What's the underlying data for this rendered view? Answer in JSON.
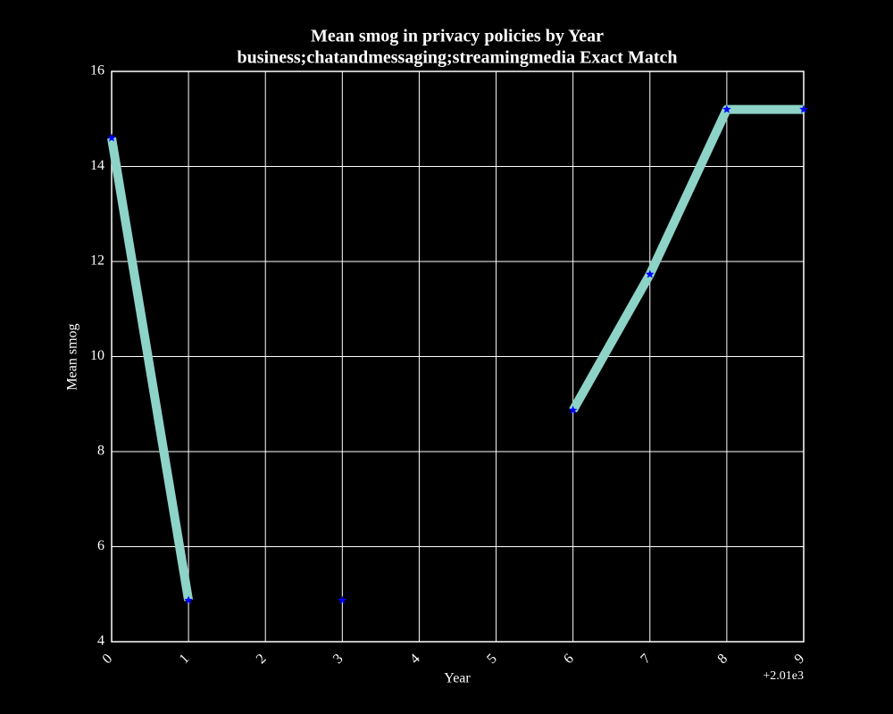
{
  "chart_data": {
    "type": "line",
    "title": "Mean smog in privacy policies by Year",
    "subtitle": "business;chatandmessaging;streamingmedia Exact Match",
    "x_label": "Year",
    "y_label": "Mean smog",
    "x_offset_label": "+2.01e3",
    "x": [
      0,
      1,
      2,
      3,
      4,
      5,
      6,
      7,
      8,
      9
    ],
    "series": [
      {
        "name": "Mean smog",
        "color": "#8dd3c7",
        "marker_color": "#0000ff",
        "values": [
          14.6,
          4.87,
          null,
          4.87,
          null,
          null,
          8.87,
          11.73,
          15.2,
          15.2
        ]
      }
    ],
    "xlim": [
      0,
      9
    ],
    "xticks": [
      0,
      1,
      2,
      3,
      4,
      5,
      6,
      7,
      8,
      9
    ],
    "ylim": [
      4,
      16
    ],
    "yticks": [
      4,
      6,
      8,
      10,
      12,
      14,
      16
    ],
    "grid": true
  }
}
